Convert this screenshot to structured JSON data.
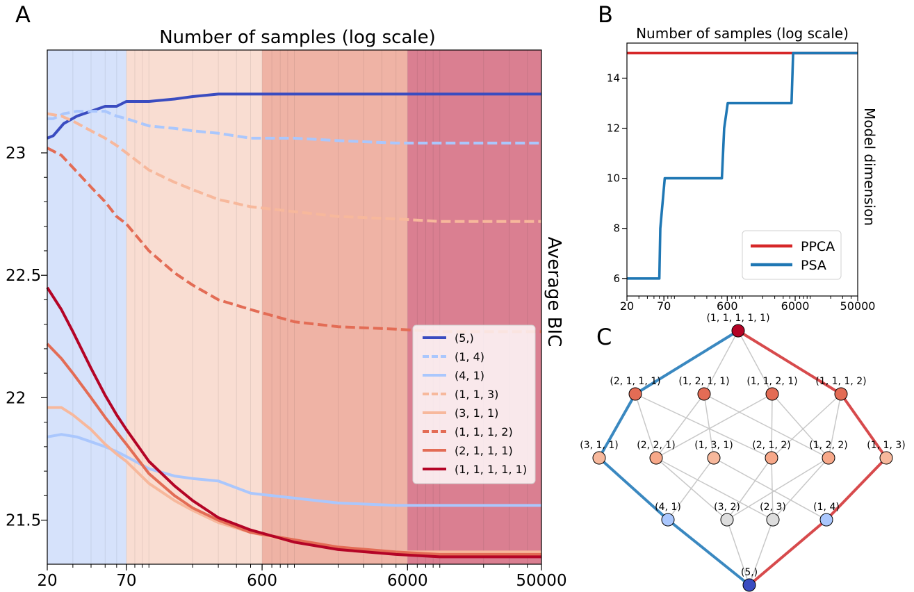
{
  "panel_labels": {
    "a": "A",
    "b": "B",
    "c": "C"
  },
  "chart_data": [
    {
      "type": "line",
      "panel": "A",
      "title": "Number of samples (log scale)",
      "xlabel": "",
      "ylabel": "Average BIC",
      "xscale": "log",
      "xlim": [
        20,
        50000
      ],
      "ylim": [
        21.32,
        23.42
      ],
      "xticks": [
        20,
        70,
        600,
        6000,
        50000
      ],
      "xtick_labels": [
        "20",
        "70",
        "600",
        "6000",
        "50000"
      ],
      "yticks": [
        21.5,
        22,
        22.5,
        23
      ],
      "ytick_labels": [
        "21.5",
        "22",
        "22.5",
        "23"
      ],
      "legend_position": "center-right",
      "background_bands": [
        {
          "from": 20,
          "to": 70,
          "color": "#d6e2fb"
        },
        {
          "from": 70,
          "to": 600,
          "color": "#f9ddd2"
        },
        {
          "from": 600,
          "to": 6000,
          "color": "#efb3a5"
        },
        {
          "from": 6000,
          "to": 50000,
          "color": "#da7f91"
        }
      ],
      "series": [
        {
          "name": "(5,)",
          "color": "#3a4cc0",
          "dash": "solid",
          "x": [
            20,
            22,
            26,
            32,
            40,
            50,
            60,
            70,
            100,
            150,
            200,
            300,
            500,
            1000,
            2000,
            5000,
            10000,
            20000,
            50000
          ],
          "y": [
            23.06,
            23.07,
            23.12,
            23.15,
            23.17,
            23.19,
            23.19,
            23.21,
            23.21,
            23.22,
            23.23,
            23.24,
            23.24,
            23.24,
            23.24,
            23.24,
            23.24,
            23.24,
            23.24
          ]
        },
        {
          "name": "(1, 4)",
          "color": "#aac7fd",
          "dash": "dashed",
          "x": [
            20,
            22,
            26,
            32,
            40,
            50,
            60,
            70,
            100,
            150,
            200,
            300,
            500,
            1000,
            2000,
            5000,
            10000,
            20000,
            50000
          ],
          "y": [
            23.14,
            23.14,
            23.16,
            23.17,
            23.17,
            23.17,
            23.15,
            23.14,
            23.11,
            23.1,
            23.09,
            23.08,
            23.06,
            23.06,
            23.05,
            23.04,
            23.04,
            23.04,
            23.04
          ]
        },
        {
          "name": "(4, 1)",
          "color": "#aac7fd",
          "dash": "solid",
          "x": [
            20,
            25,
            32,
            40,
            50,
            60,
            70,
            100,
            150,
            200,
            300,
            500,
            1000,
            2000,
            5000,
            10000,
            20000,
            50000
          ],
          "y": [
            21.84,
            21.85,
            21.84,
            21.82,
            21.8,
            21.78,
            21.76,
            21.71,
            21.68,
            21.67,
            21.66,
            21.61,
            21.59,
            21.57,
            21.56,
            21.56,
            21.56,
            21.56
          ]
        },
        {
          "name": "(1, 1, 3)",
          "color": "#f7b89c",
          "dash": "dashed",
          "x": [
            20,
            25,
            30,
            40,
            50,
            60,
            70,
            100,
            150,
            200,
            300,
            500,
            1000,
            2000,
            5000,
            10000,
            20000,
            50000
          ],
          "y": [
            23.16,
            23.15,
            23.13,
            23.09,
            23.06,
            23.03,
            23.0,
            22.93,
            22.88,
            22.85,
            22.81,
            22.78,
            22.76,
            22.74,
            22.73,
            22.72,
            22.72,
            22.72
          ]
        },
        {
          "name": "(3, 1, 1)",
          "color": "#f7b89c",
          "dash": "solid",
          "x": [
            20,
            25,
            30,
            40,
            50,
            60,
            70,
            100,
            150,
            200,
            300,
            500,
            1000,
            2000,
            5000,
            10000,
            20000,
            50000
          ],
          "y": [
            21.96,
            21.96,
            21.93,
            21.87,
            21.81,
            21.77,
            21.74,
            21.65,
            21.58,
            21.54,
            21.49,
            21.45,
            21.41,
            21.38,
            21.37,
            21.37,
            21.37,
            21.37
          ]
        },
        {
          "name": "(1, 1, 1, 2)",
          "color": "#e36c55",
          "dash": "dashed",
          "x": [
            20,
            25,
            30,
            40,
            50,
            60,
            70,
            100,
            150,
            200,
            300,
            500,
            1000,
            2000,
            5000,
            10000,
            20000,
            50000
          ],
          "y": [
            23.02,
            22.99,
            22.94,
            22.86,
            22.8,
            22.74,
            22.71,
            22.6,
            22.51,
            22.46,
            22.4,
            22.36,
            22.31,
            22.29,
            22.28,
            22.27,
            22.27,
            22.27
          ]
        },
        {
          "name": "(2, 1, 1, 1)",
          "color": "#e36c55",
          "dash": "solid",
          "x": [
            20,
            25,
            30,
            40,
            50,
            60,
            70,
            100,
            150,
            200,
            300,
            500,
            1000,
            2000,
            5000,
            10000,
            20000,
            50000
          ],
          "y": [
            22.22,
            22.16,
            22.1,
            22.0,
            21.92,
            21.86,
            21.81,
            21.69,
            21.6,
            21.55,
            21.5,
            21.45,
            21.42,
            21.39,
            21.37,
            21.36,
            21.36,
            21.36
          ]
        },
        {
          "name": "(1, 1, 1, 1, 1)",
          "color": "#b40426",
          "dash": "solid",
          "x": [
            20,
            25,
            30,
            40,
            50,
            60,
            70,
            100,
            150,
            200,
            300,
            500,
            1000,
            2000,
            5000,
            10000,
            20000,
            50000
          ],
          "y": [
            22.45,
            22.36,
            22.27,
            22.12,
            22.01,
            21.93,
            21.87,
            21.74,
            21.64,
            21.58,
            21.51,
            21.46,
            21.41,
            21.38,
            21.36,
            21.35,
            21.35,
            21.35
          ]
        }
      ]
    },
    {
      "type": "line",
      "panel": "B",
      "title": "Number of samples (log scale)",
      "xlabel": "",
      "ylabel": "Model dimension",
      "xscale": "log",
      "xlim": [
        20,
        50000
      ],
      "ylim": [
        5.3,
        15.4
      ],
      "xticks": [
        20,
        70,
        600,
        6000,
        50000
      ],
      "xtick_labels": [
        "20",
        "70",
        "600",
        "6000",
        "50000"
      ],
      "yticks": [
        6,
        8,
        10,
        12,
        14
      ],
      "ytick_labels": [
        "6",
        "8",
        "10",
        "12",
        "14"
      ],
      "legend_position": "lower-right",
      "series": [
        {
          "name": "PPCA",
          "color": "#d62728",
          "x": [
            20,
            50000
          ],
          "y": [
            15,
            15
          ]
        },
        {
          "name": "PSA",
          "color": "#1f77b4",
          "x": [
            20,
            60,
            62,
            72,
            75,
            500,
            540,
            610,
            640,
            5300,
            5600,
            50000
          ],
          "y": [
            6,
            6,
            8,
            10,
            10,
            10,
            12,
            13,
            13,
            13,
            15,
            15
          ]
        }
      ]
    },
    {
      "type": "diagram",
      "panel": "C",
      "levels": [
        {
          "nodes": [
            {
              "label": "(1, 1, 1, 1, 1)",
              "color": "#b40426"
            }
          ]
        },
        {
          "nodes": [
            {
              "label": "(2, 1, 1, 1)",
              "color": "#e36c55"
            },
            {
              "label": "(1, 2, 1, 1)",
              "color": "#e36c55"
            },
            {
              "label": "(1, 1, 2, 1)",
              "color": "#e36c55"
            },
            {
              "label": "(1, 1, 1, 2)",
              "color": "#e36c55"
            }
          ]
        },
        {
          "nodes": [
            {
              "label": "(3, 1, 1)",
              "color": "#f7b89c"
            },
            {
              "label": "(2, 2, 1)",
              "color": "#f7a889"
            },
            {
              "label": "(1, 3, 1)",
              "color": "#f7b89c"
            },
            {
              "label": "(2, 1, 2)",
              "color": "#f7a889"
            },
            {
              "label": "(1, 2, 2)",
              "color": "#f7a889"
            },
            {
              "label": "(1, 1, 3)",
              "color": "#f7b89c"
            }
          ]
        },
        {
          "nodes": [
            {
              "label": "(4, 1)",
              "color": "#aac7fd"
            },
            {
              "label": "(3, 2)",
              "color": "#dddddd"
            },
            {
              "label": "(2, 3)",
              "color": "#dddddd"
            },
            {
              "label": "(1, 4)",
              "color": "#aac7fd"
            }
          ]
        },
        {
          "nodes": [
            {
              "label": "(5,)",
              "color": "#3a4cc0"
            }
          ]
        }
      ],
      "edges": [
        [
          "0.0",
          "1.0"
        ],
        [
          "0.0",
          "1.1"
        ],
        [
          "0.0",
          "1.2"
        ],
        [
          "0.0",
          "1.3"
        ],
        [
          "1.0",
          "2.0"
        ],
        [
          "1.0",
          "2.1"
        ],
        [
          "1.0",
          "2.3"
        ],
        [
          "1.1",
          "2.1"
        ],
        [
          "1.1",
          "2.2"
        ],
        [
          "1.1",
          "2.4"
        ],
        [
          "1.2",
          "2.1"
        ],
        [
          "1.2",
          "2.3"
        ],
        [
          "1.2",
          "2.4"
        ],
        [
          "1.3",
          "2.3"
        ],
        [
          "1.3",
          "2.4"
        ],
        [
          "1.3",
          "2.5"
        ],
        [
          "2.0",
          "3.0"
        ],
        [
          "2.1",
          "3.1"
        ],
        [
          "2.1",
          "3.2"
        ],
        [
          "2.2",
          "3.0"
        ],
        [
          "2.2",
          "3.3"
        ],
        [
          "2.3",
          "3.1"
        ],
        [
          "2.3",
          "3.2"
        ],
        [
          "2.4",
          "3.1"
        ],
        [
          "2.4",
          "3.2"
        ],
        [
          "2.5",
          "3.3"
        ],
        [
          "3.0",
          "4.0"
        ],
        [
          "3.1",
          "4.0"
        ],
        [
          "3.2",
          "4.0"
        ],
        [
          "3.3",
          "4.0"
        ]
      ],
      "paths": [
        {
          "color": "#3a88c0",
          "nodes": [
            "0.0",
            "1.0",
            "2.0",
            "3.0",
            "4.0"
          ]
        },
        {
          "color": "#d74a4c",
          "nodes": [
            "0.0",
            "1.3",
            "2.5",
            "3.3",
            "4.0"
          ]
        }
      ],
      "edge_color": "#c8c8c8"
    }
  ]
}
